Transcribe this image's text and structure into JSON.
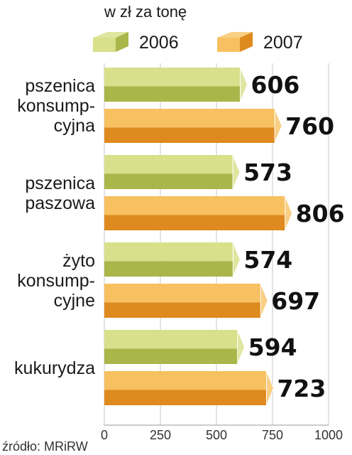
{
  "chart_data": {
    "type": "bar",
    "orientation": "horizontal",
    "unit_label": "w zł za tonę",
    "categories": [
      [
        "pszenica",
        "konsump-",
        "cyjna"
      ],
      [
        "pszenica",
        "paszowa"
      ],
      [
        "żyto",
        "konsump-",
        "cyjne"
      ],
      [
        "kukurydza"
      ]
    ],
    "series": [
      {
        "name": "2006",
        "color": "#c9d36a",
        "values": [
          606,
          573,
          574,
          594
        ]
      },
      {
        "name": "2007",
        "color": "#f3a73a",
        "values": [
          760,
          806,
          697,
          723
        ]
      }
    ],
    "xlim": [
      0,
      1000
    ],
    "xticks": [
      "0",
      "250",
      "500",
      "750",
      "1000"
    ],
    "xtick_values": [
      0,
      250,
      500,
      750,
      1000
    ],
    "grid": true,
    "legend": "top",
    "source": "źródło: MRiRW"
  }
}
